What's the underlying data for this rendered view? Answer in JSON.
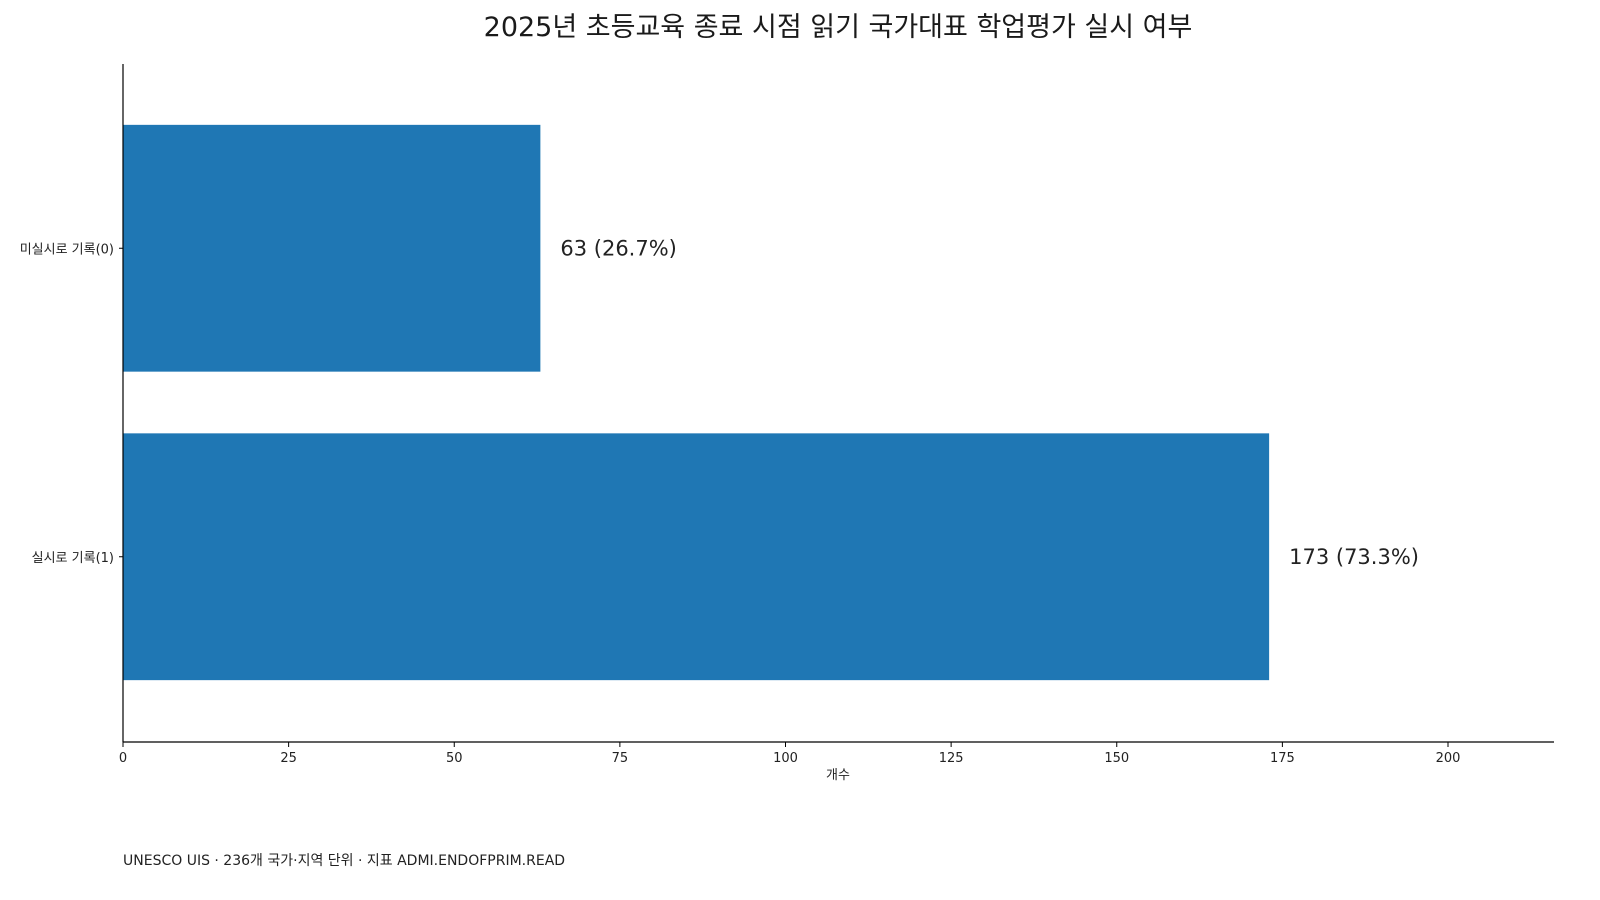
{
  "chart_data": {
    "type": "bar",
    "orientation": "horizontal",
    "title": "2025년 초등교육 종료 시점 읽기 국가대표 학업평가 실시 여부",
    "categories": [
      "미실시로 기록(0)",
      "실시로 기록(1)"
    ],
    "values": [
      63,
      173
    ],
    "value_labels": [
      "63  (26.7%)",
      "173  (73.3%)"
    ],
    "xlabel": "개수",
    "ylabel": "",
    "xlim": [
      0,
      216
    ],
    "x_ticks": [
      0,
      25,
      50,
      75,
      100,
      125,
      150,
      175,
      200
    ],
    "bar_color": "#1f77b4",
    "grid": false,
    "legend": "none"
  },
  "footer": {
    "note": "UNESCO UIS · 236개 국가·지역 단위 · 지표 ADMI.ENDOFPRIM.READ"
  }
}
